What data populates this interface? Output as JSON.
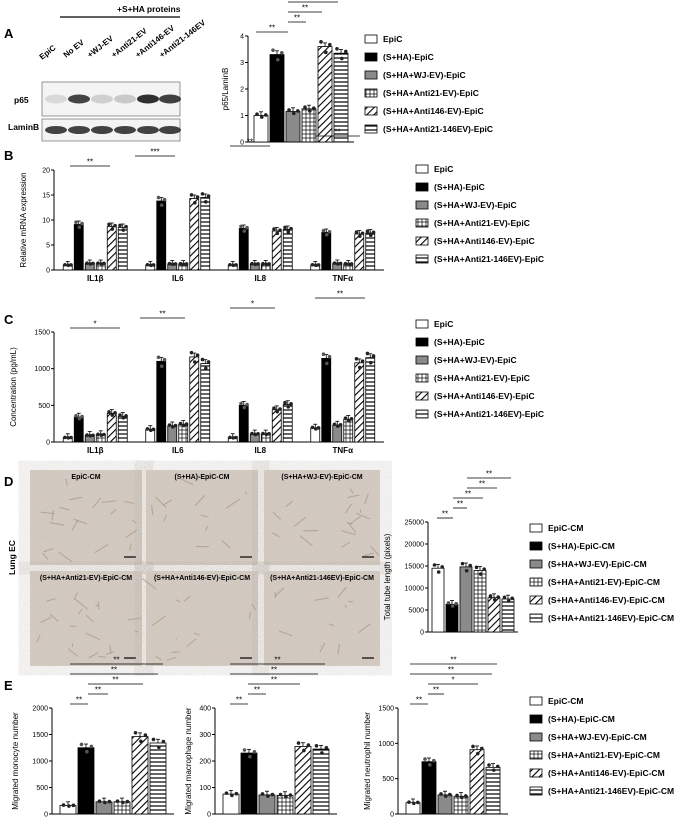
{
  "panels": {
    "A": "A",
    "B": "B",
    "C": "C",
    "D": "D",
    "E": "E"
  },
  "palette": {
    "epic": "#ffffff",
    "sha": "#000000",
    "wj": "#888888",
    "edge": "#000000",
    "dot": "#333333"
  },
  "groups6": [
    "EpiC",
    "(S+HA)-EpiC",
    "(S+HA+WJ-EV)-EpiC",
    "(S+HA+Anti21-EV)-EpiC",
    "(S+HA+Anti146-EV)-EpiC",
    "(S+HA+Anti21-146EV)-EpiC"
  ],
  "groups6_alt": [
    "EpiC",
    "(S+HA)-EpiC",
    "(S+HA+WJ-EV)-EpiC",
    "(S+HA+Anti21-EV)-EpiC",
    "(S+HA+Anti146-EV)-EpiC",
    "(S+HA+Anti21-146EV)-EpiC"
  ],
  "groupsCM": [
    "EpiC-CM",
    "(S+HA)-EpiC-CM",
    "(S+HA+WJ-EV)-EpiC-CM",
    "(S+HA+Anti21-EV)-EpiC-CM",
    "(S+HA+Anti146-EV)-EpiC-CM",
    "(S+HA+Anti21-146EV)-EpiC-CM"
  ],
  "blot": {
    "header": "+S+HA proteins",
    "lanes": [
      "EpiC",
      "No EV",
      "+WJ-EV",
      "+Anti21-EV",
      "+Anti146-EV",
      "+Anti21-146EV"
    ],
    "rows": [
      "p65",
      "LaminB"
    ]
  },
  "micro": {
    "side_label": "Lung EC",
    "titles": [
      "EpiC-CM",
      "(S+HA)-EpiC-CM",
      "(S+HA+WJ-EV)-EpiC-CM",
      "(S+HA+Anti21-EV)-EpiC-CM",
      "(S+HA+Anti146-EV)-EpiC-CM",
      "(S+HA+Anti21-146EV)-EpiC-CM"
    ]
  },
  "sig": {
    "two": "**",
    "three": "***",
    "one": "*"
  },
  "chart_data": [
    {
      "id": "A",
      "type": "bar",
      "ylabel": "p65/LaminB",
      "ylim": [
        0,
        4
      ],
      "yticks": [
        "0",
        "1",
        "2",
        "3",
        "4"
      ],
      "categories": [
        ""
      ],
      "series": [
        {
          "values": [
            1.0
          ]
        },
        {
          "values": [
            3.3
          ]
        },
        {
          "values": [
            1.15
          ]
        },
        {
          "values": [
            1.25
          ]
        },
        {
          "values": [
            3.6
          ]
        },
        {
          "values": [
            3.35
          ]
        }
      ],
      "significance": [
        "**",
        "**",
        "**",
        "**",
        "**"
      ]
    },
    {
      "id": "B",
      "type": "bar",
      "ylabel": "Relative mRNA expression",
      "ylim": [
        0,
        20
      ],
      "yticks": [
        "0",
        "5",
        "10",
        "15",
        "20"
      ],
      "categories": [
        "IL1β",
        "IL6",
        "IL8",
        "TNFα"
      ],
      "series": [
        {
          "values": [
            1.0,
            1.0,
            1.0,
            1.0
          ]
        },
        {
          "values": [
            9.1,
            13.8,
            8.3,
            7.5
          ]
        },
        {
          "values": [
            1.3,
            1.2,
            1.2,
            1.3
          ]
        },
        {
          "values": [
            1.3,
            1.2,
            1.2,
            1.2
          ]
        },
        {
          "values": [
            8.7,
            14.3,
            7.8,
            7.2
          ]
        },
        {
          "values": [
            8.5,
            14.5,
            8.1,
            7.4
          ]
        }
      ],
      "significance": [
        "**",
        "***",
        "*"
      ]
    },
    {
      "id": "C",
      "type": "bar",
      "ylabel": "Concentration (pg/mL)",
      "ylim": [
        0,
        1500
      ],
      "yticks": [
        "0",
        "500",
        "1000",
        "1500"
      ],
      "categories": [
        "IL1β",
        "IL6",
        "IL8",
        "TNFα"
      ],
      "series": [
        {
          "values": [
            60,
            170,
            60,
            190
          ]
        },
        {
          "values": [
            340,
            1100,
            500,
            1140
          ]
        },
        {
          "values": [
            90,
            220,
            110,
            230
          ]
        },
        {
          "values": [
            100,
            240,
            110,
            310
          ]
        },
        {
          "values": [
            390,
            1160,
            440,
            1080
          ]
        },
        {
          "values": [
            350,
            1070,
            510,
            1150
          ]
        }
      ]
    },
    {
      "id": "D",
      "type": "bar",
      "ylabel": "Total tube length (pixels)",
      "ylim": [
        0,
        25000
      ],
      "yticks": [
        "0",
        "5000",
        "10000",
        "15000",
        "20000",
        "25000"
      ],
      "categories": [
        ""
      ],
      "series": [
        {
          "values": [
            14500
          ]
        },
        {
          "values": [
            6300
          ]
        },
        {
          "values": [
            14800
          ]
        },
        {
          "values": [
            14000
          ]
        },
        {
          "values": [
            7800
          ]
        },
        {
          "values": [
            7500
          ]
        }
      ]
    },
    {
      "id": "E1",
      "type": "bar",
      "ylabel": "Migrated monocyte number",
      "ylim": [
        0,
        2000
      ],
      "yticks": [
        "0",
        "500",
        "1000",
        "1500",
        "2000"
      ],
      "categories": [
        ""
      ],
      "series": [
        {
          "values": [
            160
          ]
        },
        {
          "values": [
            1250
          ]
        },
        {
          "values": [
            230
          ]
        },
        {
          "values": [
            230
          ]
        },
        {
          "values": [
            1460
          ]
        },
        {
          "values": [
            1340
          ]
        }
      ]
    },
    {
      "id": "E2",
      "type": "bar",
      "ylabel": "Migrated macrophage number",
      "ylim": [
        0,
        400
      ],
      "yticks": [
        "0",
        "100",
        "200",
        "300",
        "400"
      ],
      "categories": [
        ""
      ],
      "series": [
        {
          "values": [
            75
          ]
        },
        {
          "values": [
            230
          ]
        },
        {
          "values": [
            72
          ]
        },
        {
          "values": [
            70
          ]
        },
        {
          "values": [
            255
          ]
        },
        {
          "values": [
            245
          ]
        }
      ]
    },
    {
      "id": "E3",
      "type": "bar",
      "ylabel": "Migrated neutrophil number",
      "ylim": [
        0,
        1500
      ],
      "yticks": [
        "0",
        "500",
        "1000",
        "1500"
      ],
      "categories": [
        ""
      ],
      "series": [
        {
          "values": [
            160
          ]
        },
        {
          "values": [
            740
          ]
        },
        {
          "values": [
            270
          ]
        },
        {
          "values": [
            250
          ]
        },
        {
          "values": [
            910
          ]
        },
        {
          "values": [
            660
          ]
        }
      ]
    }
  ]
}
